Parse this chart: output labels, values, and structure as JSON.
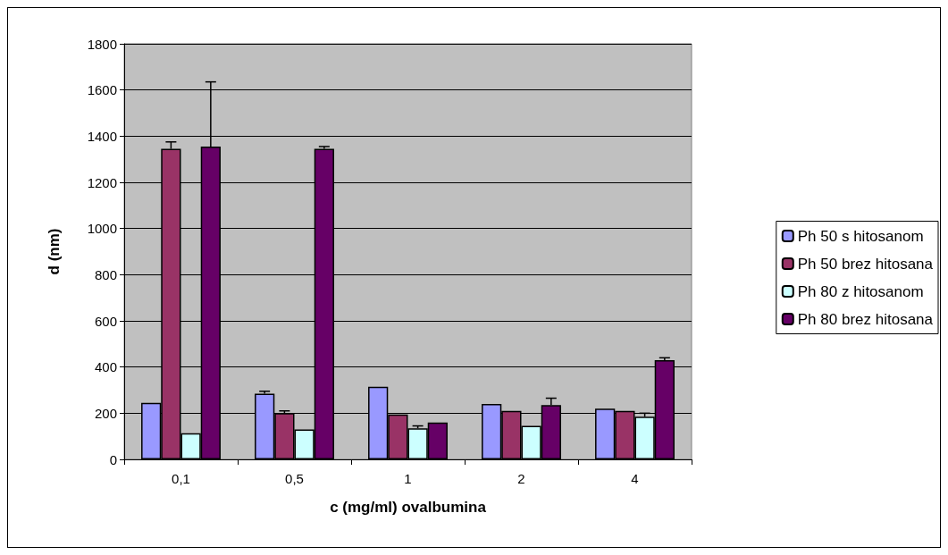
{
  "chart_data": {
    "type": "bar",
    "xlabel": "c (mg/ml) ovalbumina",
    "ylabel": "d (nm)",
    "categories": [
      "0,1",
      "0,5",
      "1",
      "2",
      "4"
    ],
    "series": [
      {
        "name": "Ph 50 s hitosanom",
        "color": "#9999ff",
        "values": [
          245,
          285,
          315,
          240,
          220
        ],
        "errors": [
          null,
          10,
          null,
          null,
          null
        ]
      },
      {
        "name": "Ph 50 brez hitosana",
        "color": "#993366",
        "values": [
          1345,
          200,
          195,
          210,
          210
        ],
        "errors": [
          30,
          10,
          null,
          null,
          null
        ]
      },
      {
        "name": "Ph 80 z hitosanom",
        "color": "#ccffff",
        "values": [
          113,
          130,
          135,
          145,
          185
        ],
        "errors": [
          null,
          null,
          10,
          null,
          15
        ]
      },
      {
        "name": "Ph 80 brez hitosana",
        "color": "#660066",
        "values": [
          1355,
          1345,
          160,
          235,
          430
        ],
        "errors": [
          280,
          10,
          null,
          30,
          10
        ]
      }
    ],
    "ylim": [
      0,
      1800
    ],
    "yticks": [
      0,
      200,
      400,
      600,
      800,
      1000,
      1200,
      1400,
      1600,
      1800
    ],
    "grid": "y",
    "legend": "right"
  }
}
